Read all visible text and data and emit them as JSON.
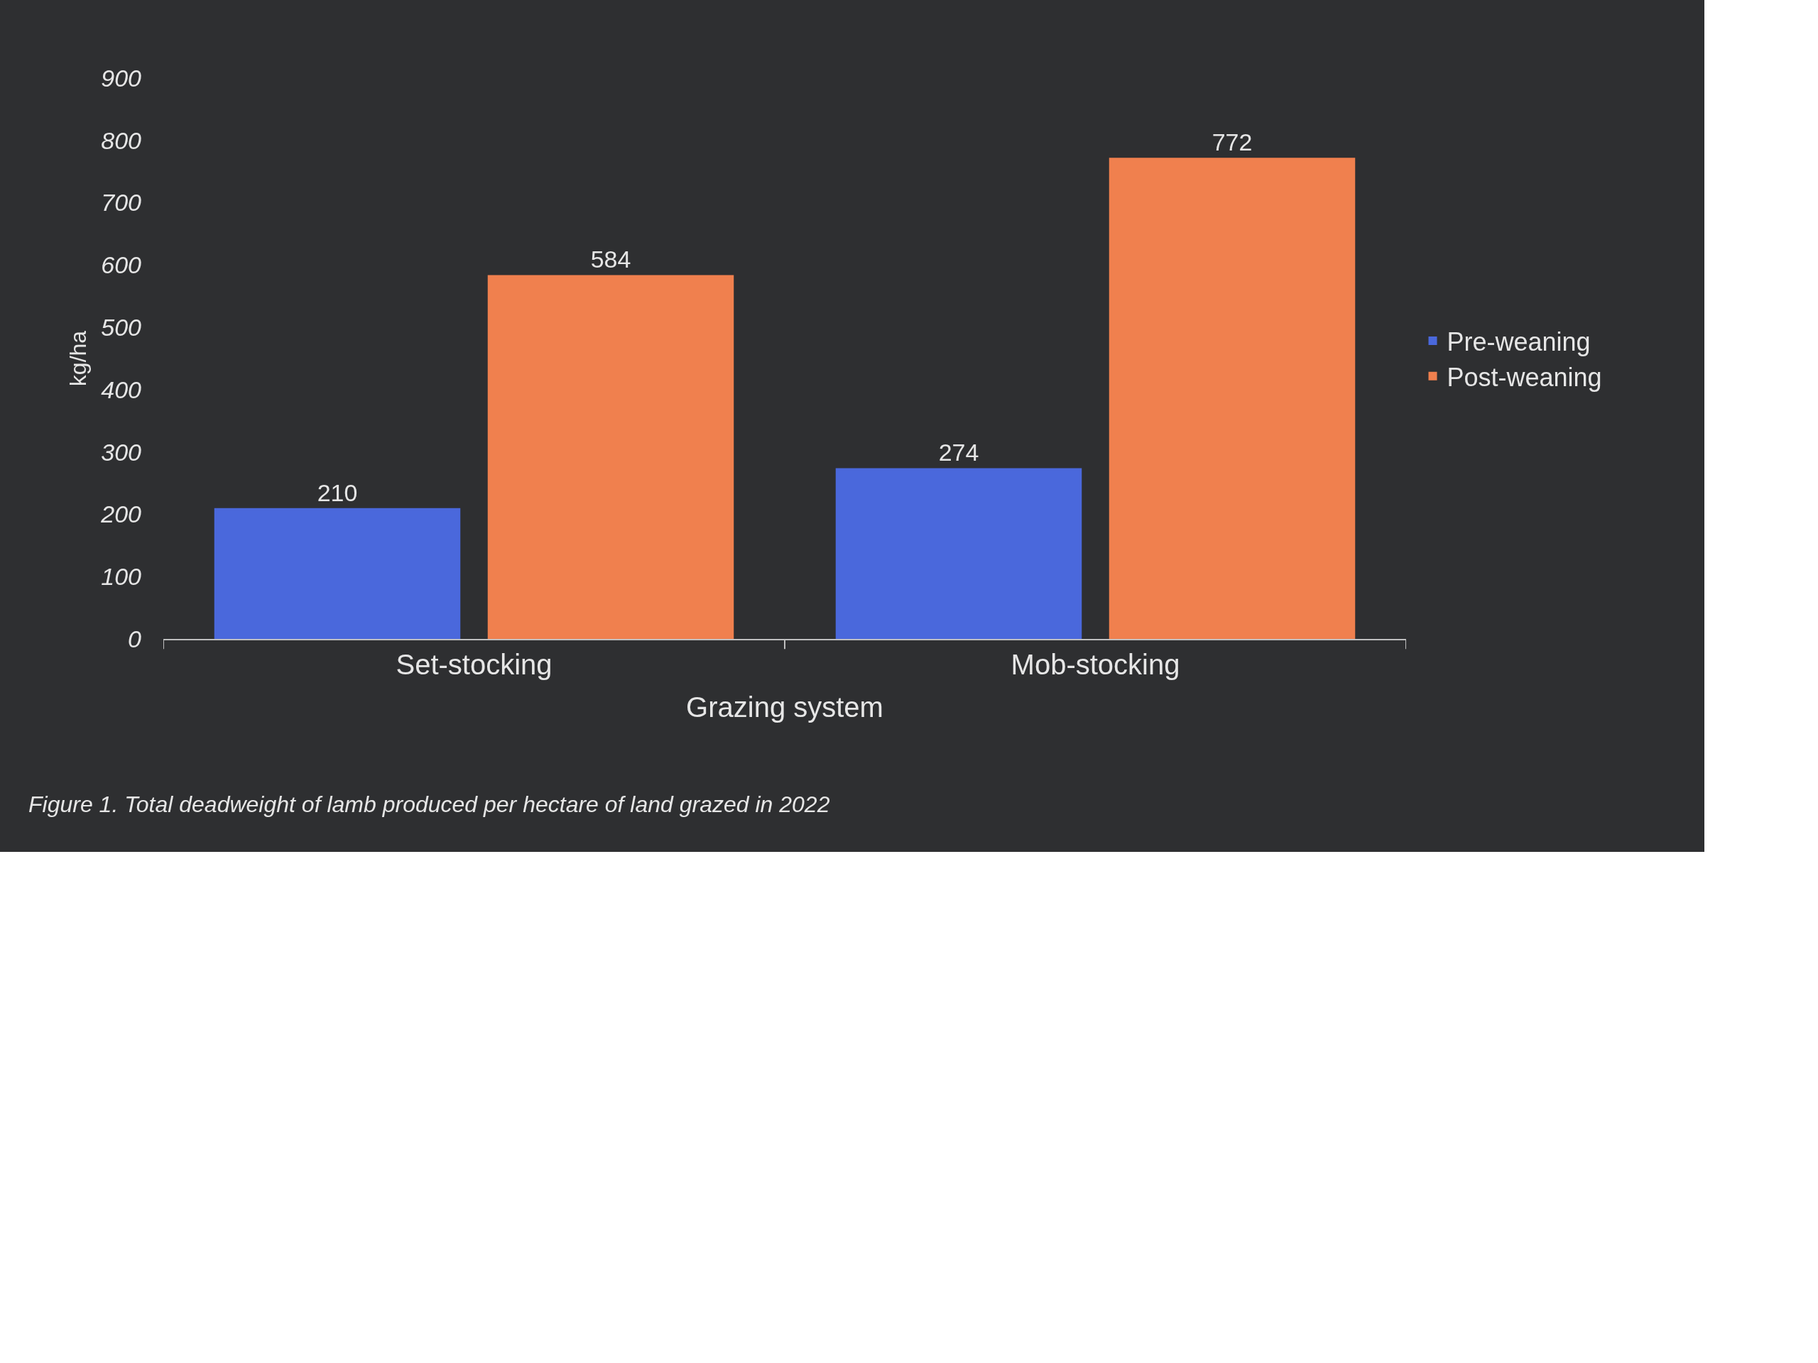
{
  "chart_data": {
    "type": "bar",
    "categories": [
      "Set-stocking",
      "Mob-stocking"
    ],
    "series": [
      {
        "name": "Pre-weaning",
        "color": "#4a68dc",
        "values": [
          210,
          274
        ]
      },
      {
        "name": "Post-weaning",
        "color": "#f0804e",
        "values": [
          584,
          772
        ]
      }
    ],
    "xlabel": "Grazing system",
    "ylabel": "kg/ha",
    "ylim": [
      0,
      900
    ],
    "yticks": [
      0,
      100,
      200,
      300,
      400,
      500,
      600,
      700,
      800,
      900
    ],
    "grid": false,
    "legend": "right",
    "data_labels": true,
    "annotations": [
      "Figure 1. Total deadweight of lamb produced per hectare of land grazed in 2022"
    ]
  }
}
